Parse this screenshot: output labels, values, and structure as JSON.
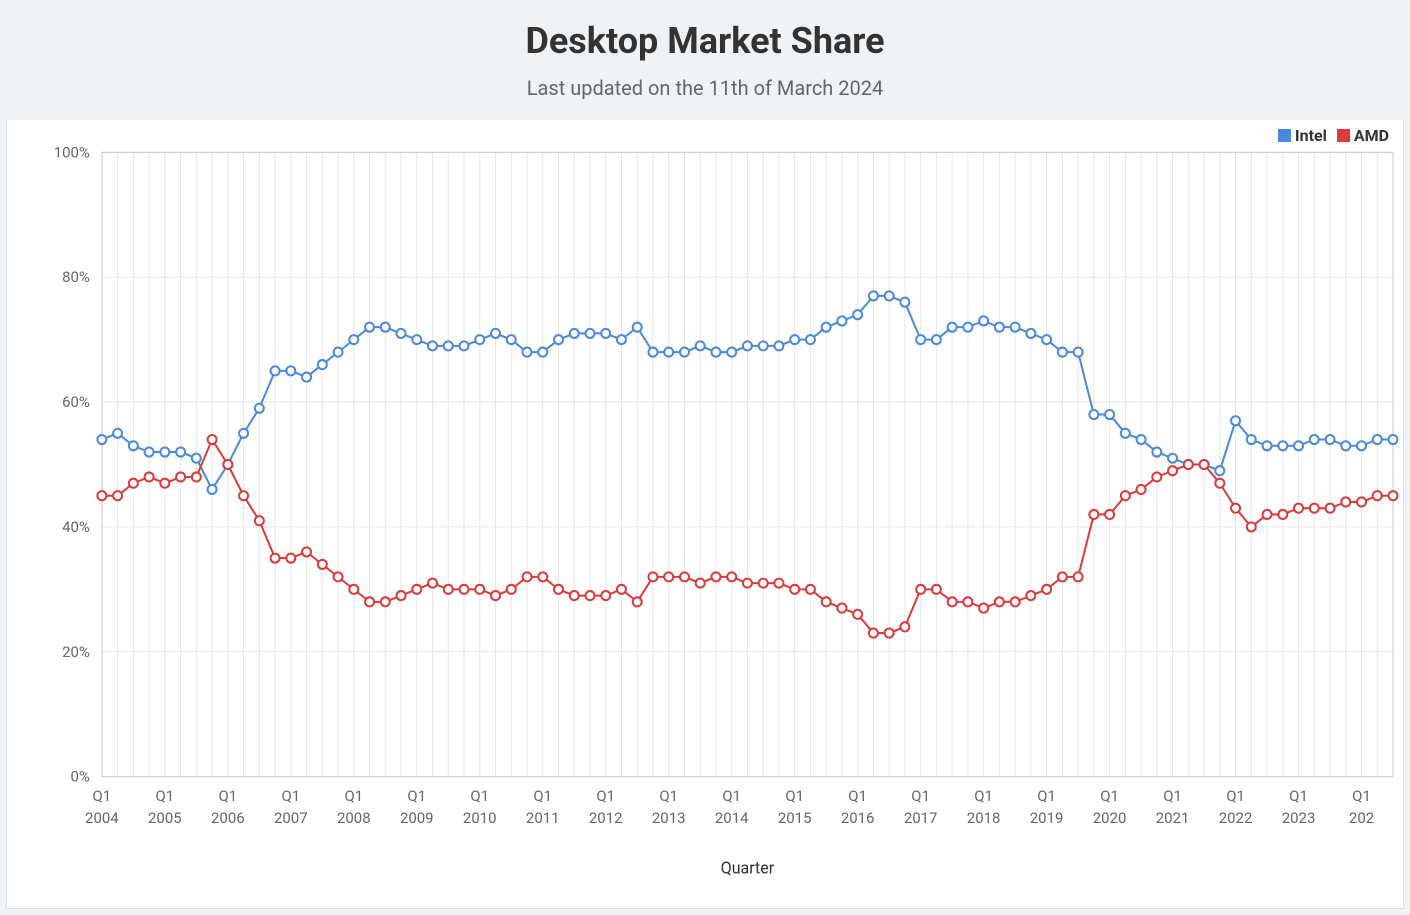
{
  "header": {
    "title": "Desktop Market Share",
    "subtitle": "Last updated on the 11th of March 2024"
  },
  "chart": {
    "type": "line",
    "background_color": "#ffffff",
    "page_background_color": "#f0f3f5",
    "plot_border_color": "#cccccc",
    "grid_color": "#e6e6e6",
    "axis_text_color": "#666666",
    "xlabel": "Quarter",
    "xlabel_fontsize": 16,
    "ylim": [
      0,
      100
    ],
    "ytick_step": 20,
    "ytick_suffix": "%",
    "ytick_fontsize": 15,
    "xtick_fontsize": 15,
    "line_width": 2,
    "marker_radius": 4.5,
    "marker_fill": "#ffffff",
    "marker_stroke_width": 2,
    "x_labels_major": [
      "Q1",
      "Q1",
      "Q1",
      "Q1",
      "Q1",
      "Q1",
      "Q1",
      "Q1",
      "Q1",
      "Q1",
      "Q1",
      "Q1",
      "Q1",
      "Q1",
      "Q1",
      "Q1",
      "Q1",
      "Q1",
      "Q1",
      "Q1",
      "Q1"
    ],
    "x_years": [
      "2004",
      "2005",
      "2006",
      "2007",
      "2008",
      "2009",
      "2010",
      "2011",
      "2012",
      "2013",
      "2014",
      "2015",
      "2016",
      "2017",
      "2018",
      "2019",
      "2020",
      "2021",
      "2022",
      "2023",
      "202"
    ],
    "legend": {
      "items": [
        {
          "label": "Intel",
          "color": "#4a89dc"
        },
        {
          "label": "AMD",
          "color": "#da3b3b"
        }
      ]
    },
    "series": [
      {
        "name": "Intel",
        "color": "#4a89dc",
        "values": [
          54,
          55,
          53,
          52,
          52,
          52,
          51,
          46,
          50,
          55,
          59,
          65,
          65,
          64,
          66,
          68,
          70,
          72,
          72,
          71,
          70,
          69,
          69,
          69,
          70,
          71,
          70,
          68,
          68,
          70,
          71,
          71,
          71,
          70,
          72,
          68,
          68,
          68,
          69,
          68,
          68,
          69,
          69,
          69,
          70,
          70,
          72,
          73,
          74,
          77,
          77,
          76,
          70,
          70,
          72,
          72,
          73,
          72,
          72,
          71,
          70,
          68,
          68,
          58,
          58,
          55,
          54,
          52,
          51,
          50,
          50,
          49,
          57,
          54,
          53,
          53,
          53,
          54,
          54,
          53,
          53,
          54,
          54
        ]
      },
      {
        "name": "AMD",
        "color": "#da3b3b",
        "values": [
          45,
          45,
          47,
          48,
          47,
          48,
          48,
          54,
          50,
          45,
          41,
          35,
          35,
          36,
          34,
          32,
          30,
          28,
          28,
          29,
          30,
          31,
          30,
          30,
          30,
          29,
          30,
          32,
          32,
          30,
          29,
          29,
          29,
          30,
          28,
          32,
          32,
          32,
          31,
          32,
          32,
          31,
          31,
          31,
          30,
          30,
          28,
          27,
          26,
          23,
          23,
          24,
          30,
          30,
          28,
          28,
          27,
          28,
          28,
          29,
          30,
          32,
          32,
          42,
          42,
          45,
          46,
          48,
          49,
          50,
          50,
          47,
          43,
          40,
          42,
          42,
          43,
          43,
          43,
          44,
          44,
          45,
          45
        ]
      }
    ]
  }
}
